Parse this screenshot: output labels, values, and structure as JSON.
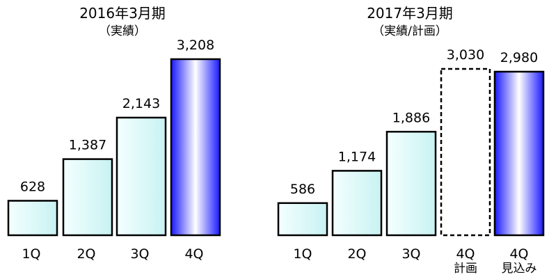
{
  "chart_data": [
    {
      "type": "bar",
      "title": "2016年3月期",
      "subtitle": "（実績）",
      "categories": [
        "1Q",
        "2Q",
        "3Q",
        "4Q"
      ],
      "values": [
        628,
        1387,
        2143,
        3208
      ],
      "bar_styles": [
        "actual",
        "actual",
        "actual",
        "highlight"
      ]
    },
    {
      "type": "bar",
      "title": "2017年3月期",
      "subtitle": "（実績/計画）",
      "categories": [
        "1Q",
        "2Q",
        "3Q",
        "4Q\n計画",
        "4Q\n見込み"
      ],
      "values": [
        586,
        1174,
        1886,
        3030,
        2980
      ],
      "bar_styles": [
        "actual",
        "actual",
        "actual",
        "plan",
        "highlight"
      ]
    }
  ],
  "colors": {
    "actual_light": "#f4ffff",
    "actual_dark": "#c8f2f2",
    "highlight_edge": "#1a1aff",
    "highlight_center": "#ffffff",
    "bar_stroke": "#000000"
  }
}
